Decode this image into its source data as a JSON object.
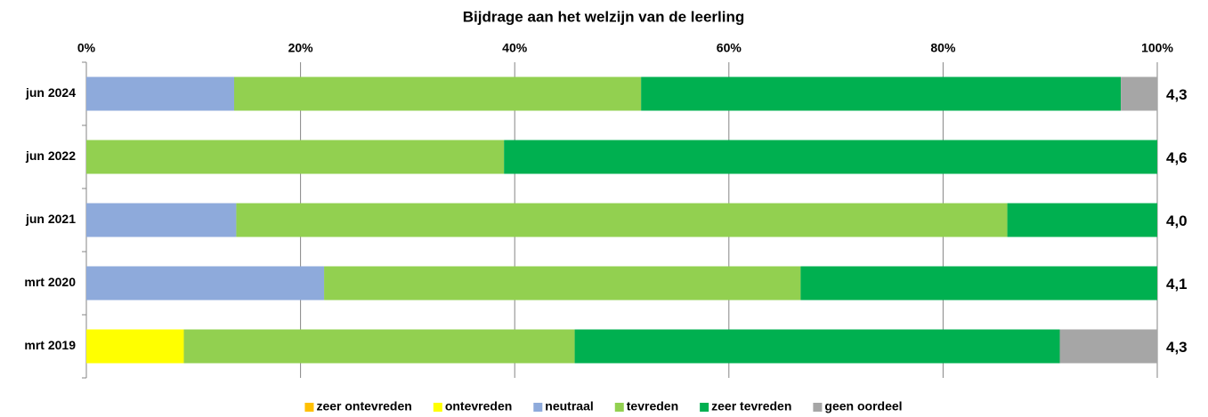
{
  "chart_data": {
    "type": "stacked_hbar",
    "title": "Bijdrage aan het welzijn van de leerling",
    "categories": [
      "jun 2024",
      "jun 2022",
      "jun 2021",
      "mrt 2020",
      "mrt 2019"
    ],
    "series": [
      {
        "name": "zeer ontevreden",
        "color": "#ffc000",
        "values": [
          0,
          0,
          0,
          0,
          0
        ]
      },
      {
        "name": "ontevreden",
        "color": "#ffff00",
        "values": [
          0,
          0,
          0,
          0,
          9.1
        ]
      },
      {
        "name": "neutraal",
        "color": "#8eaadb",
        "values": [
          13.8,
          0,
          14.0,
          22.2,
          0
        ]
      },
      {
        "name": "tevreden",
        "color": "#92d050",
        "values": [
          38.0,
          39.0,
          72.0,
          44.5,
          36.5
        ]
      },
      {
        "name": "zeer tevreden",
        "color": "#00b050",
        "values": [
          44.8,
          61.0,
          14.0,
          33.3,
          45.3
        ]
      },
      {
        "name": "geen oordeel",
        "color": "#a6a6a6",
        "values": [
          3.4,
          0,
          0,
          0,
          9.1
        ]
      }
    ],
    "annotations": [
      "4,3",
      "4,6",
      "4,0",
      "4,1",
      "4,3"
    ],
    "xlim": [
      0,
      100
    ],
    "xticks": [
      {
        "value": 0,
        "label": "0%"
      },
      {
        "value": 20,
        "label": "20%"
      },
      {
        "value": 40,
        "label": "40%"
      },
      {
        "value": 60,
        "label": "60%"
      },
      {
        "value": 80,
        "label": "80%"
      },
      {
        "value": 100,
        "label": "100%"
      }
    ],
    "grid": true,
    "legend": "bottom"
  }
}
